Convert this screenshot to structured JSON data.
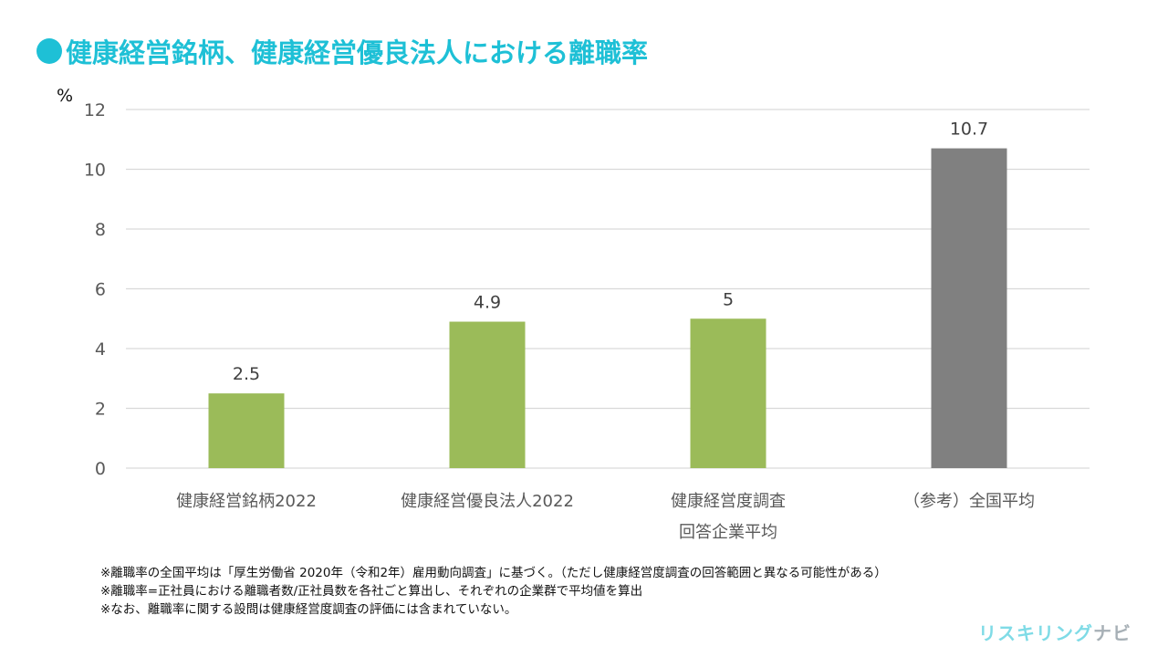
{
  "title": "健康経営銘柄、健康経営優良法人における離職率",
  "colors": {
    "accent": "#1ec0d6",
    "green": "#9bbb59",
    "gray": "#808080"
  },
  "chart_data": {
    "type": "bar",
    "title": "健康経営銘柄、健康経営優良法人における離職率",
    "ylabel": "%",
    "xlabel": "",
    "ylim": [
      0,
      12
    ],
    "yticks": [
      0,
      2,
      4,
      6,
      8,
      10,
      12
    ],
    "grid": true,
    "categories": [
      [
        "健康経営銘柄2022"
      ],
      [
        "健康経営優良法人2022"
      ],
      [
        "健康経営度調査",
        "回答企業平均"
      ],
      [
        "（参考）全国平均"
      ]
    ],
    "values": [
      2.5,
      4.9,
      5,
      10.7
    ],
    "value_labels": [
      "2.5",
      "4.9",
      "5",
      "10.7"
    ],
    "bar_colors": [
      "#9bbb59",
      "#9bbb59",
      "#9bbb59",
      "#808080"
    ]
  },
  "notes": [
    "※離職率の全国平均は「厚生労働省  2020年（令和2年）雇用動向調査」に基づく。（ただし健康経営度調査の回答範囲と異なる可能性がある）",
    "※離職率=正社員における離職者数/正社員数を各社ごと算出し、それぞれの企業群で平均値を算出",
    "※なお、離職率に関する設問は健康経営度調査の評価には含まれていない。"
  ],
  "logo": {
    "part1": "リスキリング",
    "part2": "ナビ"
  }
}
